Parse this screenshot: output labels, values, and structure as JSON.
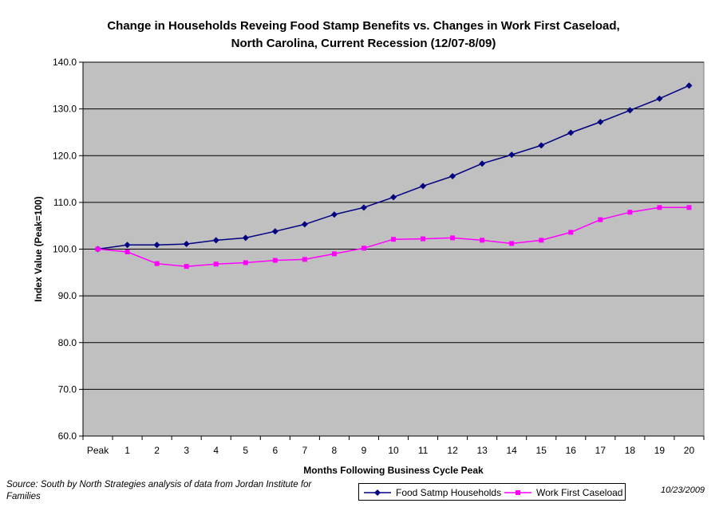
{
  "title_line1": "Change in Households Reveing Food Stamp Benefits vs. Changes in Work First Caseload,",
  "title_line2": "North Carolina, Current Recession (12/07-8/09)",
  "source_note": "Source: South by North Strategies analysis of data from Jordan Institute for Families",
  "date_note": "10/23/2009",
  "colors": {
    "plot_bg": "#c0c0c0",
    "series1": "#000080",
    "series2": "#ff00ff"
  },
  "chart_data": {
    "type": "line",
    "title": "Change in Households Reveing Food Stamp Benefits vs. Changes in Work First Caseload, North Carolina, Current Recession (12/07-8/09)",
    "xlabel": "Months Following Business Cycle Peak",
    "ylabel": "Index Value (Peak=100)",
    "ylim": [
      60,
      140
    ],
    "yticks": [
      "60.0",
      "70.0",
      "80.0",
      "90.0",
      "100.0",
      "110.0",
      "120.0",
      "130.0",
      "140.0"
    ],
    "grid": true,
    "legend_position": "bottom",
    "categories": [
      "Peak",
      "1",
      "2",
      "3",
      "4",
      "5",
      "6",
      "7",
      "8",
      "9",
      "10",
      "11",
      "12",
      "13",
      "14",
      "15",
      "16",
      "17",
      "18",
      "19",
      "20"
    ],
    "series": [
      {
        "name": "Food Satmp Households",
        "color": "#000080",
        "marker": "diamond",
        "values": [
          100.0,
          100.9,
          100.9,
          101.1,
          101.9,
          102.4,
          103.8,
          105.3,
          107.4,
          108.9,
          111.1,
          113.5,
          115.6,
          118.3,
          120.2,
          122.2,
          124.9,
          127.2,
          129.7,
          132.2,
          135.0
        ]
      },
      {
        "name": "Work First Caseload",
        "color": "#ff00ff",
        "marker": "square",
        "values": [
          100.0,
          99.4,
          96.9,
          96.3,
          96.8,
          97.1,
          97.6,
          97.8,
          99.0,
          100.2,
          102.1,
          102.2,
          102.4,
          101.9,
          101.2,
          101.9,
          103.6,
          106.3,
          107.9,
          108.9,
          108.9
        ]
      }
    ]
  }
}
